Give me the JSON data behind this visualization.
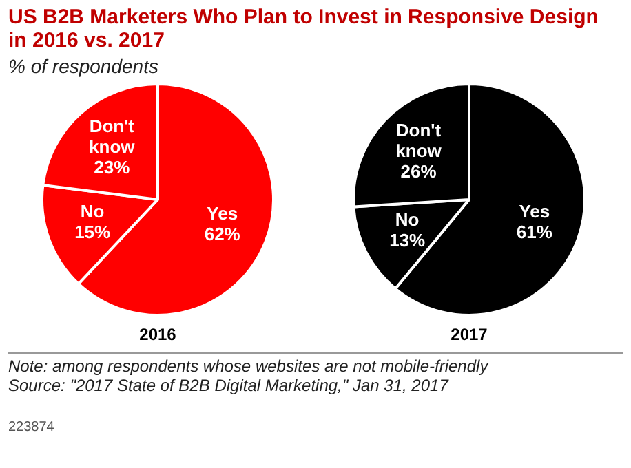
{
  "chart_data": [
    {
      "type": "pie",
      "title": "US B2B Marketers Who Plan to Invest in Responsive Design in 2016 vs. 2017",
      "subtitle": "% of respondents",
      "xlabel": "2016",
      "categories": [
        "Yes",
        "No",
        "Don't know"
      ],
      "values": [
        62,
        15,
        23
      ],
      "value_labels": [
        "62%",
        "15%",
        "23%"
      ],
      "colors": [
        "#ff0000",
        "#ff0000",
        "#ff0000"
      ],
      "legend": false
    },
    {
      "type": "pie",
      "xlabel": "2017",
      "categories": [
        "Yes",
        "No",
        "Don't know"
      ],
      "values": [
        61,
        13,
        26
      ],
      "value_labels": [
        "61%",
        "13%",
        "26%"
      ],
      "colors": [
        "#000000",
        "#000000",
        "#000000"
      ],
      "legend": false,
      "annotations": [
        "Note: among respondents whose websites are not mobile-friendly",
        "Source: \"2017 State of B2B Digital Marketing,\" Jan 31, 2017",
        "223874"
      ]
    }
  ]
}
